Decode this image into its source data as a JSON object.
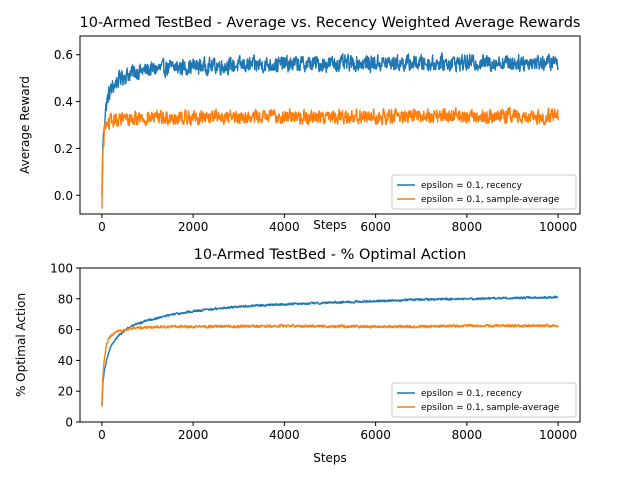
{
  "colors": {
    "recency": "#1f77b4",
    "sample_average": "#ff7f0e"
  },
  "chart_data": [
    {
      "type": "line",
      "title": "10-Armed TestBed - Average vs. Recency Weighted Average Rewards",
      "xlabel": "Steps",
      "ylabel": "Average Reward",
      "xlim": [
        -480,
        10480
      ],
      "ylim": [
        -0.08,
        0.68
      ],
      "xticks": [
        0,
        2000,
        4000,
        6000,
        8000,
        10000
      ],
      "yticks": [
        0.0,
        0.2,
        0.4,
        0.6
      ],
      "ytick_labels": [
        "0.0",
        "0.2",
        "0.4",
        "0.6"
      ],
      "legend_position": "lower-right",
      "series": [
        {
          "name": "epsilon = 0.1, recency",
          "x": [
            0,
            20,
            50,
            100,
            150,
            200,
            300,
            400,
            500,
            700,
            1000,
            1500,
            2000,
            3000,
            4000,
            5000,
            6000,
            7000,
            8000,
            9000,
            10000
          ],
          "y": [
            0.0,
            0.2,
            0.31,
            0.39,
            0.43,
            0.45,
            0.48,
            0.5,
            0.51,
            0.525,
            0.535,
            0.545,
            0.55,
            0.555,
            0.56,
            0.562,
            0.564,
            0.565,
            0.566,
            0.567,
            0.567
          ],
          "noise": 0.045
        },
        {
          "name": "epsilon = 0.1, sample-average",
          "x": [
            0,
            20,
            50,
            100,
            150,
            200,
            300,
            400,
            500,
            700,
            1000,
            1500,
            2000,
            3000,
            4000,
            5000,
            6000,
            7000,
            8000,
            9000,
            10000
          ],
          "y": [
            -0.06,
            0.18,
            0.27,
            0.3,
            0.31,
            0.315,
            0.32,
            0.322,
            0.325,
            0.328,
            0.33,
            0.332,
            0.333,
            0.335,
            0.336,
            0.337,
            0.337,
            0.338,
            0.338,
            0.338,
            0.338
          ],
          "noise": 0.04
        }
      ]
    },
    {
      "type": "line",
      "title": "10-Armed TestBed - % Optimal Action",
      "xlabel": "Steps",
      "ylabel": "% Optimal Action",
      "xlim": [
        -480,
        10480
      ],
      "ylim": [
        0,
        100
      ],
      "xticks": [
        0,
        2000,
        4000,
        6000,
        8000,
        10000
      ],
      "yticks": [
        0,
        20,
        40,
        60,
        80,
        100
      ],
      "ytick_labels": [
        "0",
        "20",
        "40",
        "60",
        "80",
        "100"
      ],
      "legend_position": "lower-right",
      "series": [
        {
          "name": "epsilon = 0.1, recency",
          "x": [
            0,
            20,
            50,
            100,
            150,
            200,
            300,
            400,
            500,
            700,
            1000,
            1500,
            2000,
            2500,
            3000,
            4000,
            5000,
            6000,
            7000,
            8000,
            9000,
            10000
          ],
          "y": [
            10,
            25,
            33,
            40,
            45,
            49,
            54,
            57,
            59.5,
            63,
            66,
            69.5,
            72,
            73.5,
            75,
            76.5,
            77.5,
            78.5,
            79.5,
            80,
            80.5,
            81
          ],
          "noise": 0.9
        },
        {
          "name": "epsilon = 0.1, sample-average",
          "x": [
            0,
            20,
            50,
            100,
            150,
            200,
            300,
            400,
            500,
            700,
            1000,
            1500,
            2000,
            3000,
            4000,
            5000,
            6000,
            7000,
            8000,
            9000,
            10000
          ],
          "y": [
            10,
            28,
            40,
            50,
            54,
            56,
            58,
            59,
            60,
            61,
            61.5,
            62,
            62,
            62,
            62.5,
            62,
            62,
            62,
            62.5,
            62.5,
            62.5
          ],
          "noise": 1.1
        }
      ]
    }
  ]
}
